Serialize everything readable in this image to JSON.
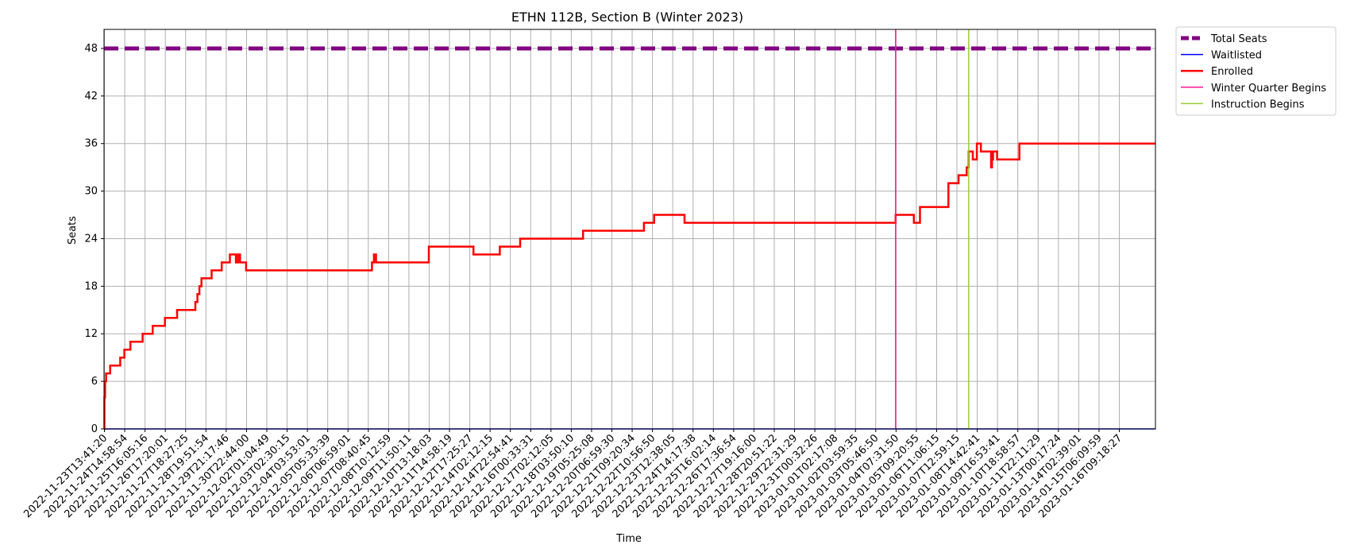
{
  "chart_data": {
    "type": "line",
    "title": "ETHN 112B, Section B (Winter 2023)",
    "xlabel": "Time",
    "ylabel": "Seats",
    "ylim": [
      0,
      50.4
    ],
    "y_ticks": [
      0,
      6,
      12,
      18,
      24,
      30,
      36,
      42,
      48
    ],
    "grid": true,
    "legend_position": "upper right, outside plot area",
    "x_tick_labels": [
      "2022-11-23T13:41:20",
      "2022-11-24T14:58:54",
      "2022-11-25T16:05:16",
      "2022-11-26T17:20:01",
      "2022-11-27T18:27:25",
      "2022-11-28T19:51:54",
      "2022-11-29T21:17:46",
      "2022-11-30T22:44:00",
      "2022-12-02T01:04:49",
      "2022-12-03T02:30:15",
      "2022-12-04T03:53:01",
      "2022-12-05T05:33:39",
      "2022-12-06T06:59:01",
      "2022-12-07T08:40:45",
      "2022-12-08T10:12:59",
      "2022-12-09T11:50:11",
      "2022-12-10T13:18:03",
      "2022-12-11T14:58:19",
      "2022-12-12T17:25:27",
      "2022-12-14T02:12:15",
      "2022-12-14T22:54:41",
      "2022-12-16T00:33:31",
      "2022-12-17T02:12:05",
      "2022-12-18T03:50:10",
      "2022-12-19T05:25:08",
      "2022-12-20T06:59:30",
      "2022-12-21T09:20:34",
      "2022-12-22T10:56:50",
      "2022-12-23T12:38:05",
      "2022-12-24T14:17:38",
      "2022-12-25T16:02:14",
      "2022-12-26T17:36:54",
      "2022-12-27T19:16:00",
      "2022-12-28T20:51:22",
      "2022-12-29T22:31:29",
      "2022-12-31T00:32:26",
      "2023-01-01T02:17:08",
      "2023-01-02T03:59:35",
      "2023-01-03T05:46:50",
      "2023-01-04T07:31:50",
      "2023-01-05T09:20:55",
      "2023-01-06T11:06:15",
      "2023-01-07T12:59:15",
      "2023-01-08T14:42:41",
      "2023-01-09T16:53:41",
      "2023-01-10T18:58:57",
      "2023-01-11T22:11:29",
      "2023-01-13T00:17:24",
      "2023-01-14T02:39:01",
      "2023-01-15T06:09:59",
      "2023-01-16T09:18:27"
    ],
    "series": [
      {
        "name": "Total Seats",
        "color": "#800080",
        "style": "dashed",
        "x": [
          0,
          51.8
        ],
        "values": [
          48,
          48
        ]
      },
      {
        "name": "Waitlisted",
        "color": "#0000ff",
        "style": "solid",
        "x": [
          0,
          51.8
        ],
        "values": [
          0,
          0
        ]
      },
      {
        "name": "Enrolled",
        "color": "#ff0000",
        "style": "step",
        "x": [
          0,
          0.02,
          0.05,
          0.1,
          0.3,
          0.8,
          1.0,
          1.3,
          1.9,
          2.4,
          3.0,
          3.6,
          4.5,
          4.6,
          4.7,
          4.8,
          5.3,
          5.8,
          6.2,
          6.5,
          6.6,
          6.7,
          7.0,
          13.2,
          13.3,
          13.4,
          16.0,
          18.2,
          19.5,
          20.5,
          23.6,
          26.6,
          27.1,
          28.6,
          39.0,
          39.9,
          40.2,
          41.6,
          42.1,
          42.5,
          42.6,
          42.8,
          43.0,
          43.2,
          43.5,
          43.7,
          43.75,
          43.8,
          44.0,
          45.1,
          45.4,
          45.6,
          46.1,
          46.2,
          46.3,
          46.7,
          46.8,
          47.0,
          51.8
        ],
        "values": [
          0,
          4,
          6,
          7,
          8,
          9,
          10,
          11,
          12,
          13,
          14,
          15,
          16,
          17,
          18,
          19,
          20,
          21,
          22,
          21,
          22,
          21,
          20,
          21,
          22,
          21,
          23,
          22,
          23,
          24,
          25,
          26,
          27,
          26,
          27,
          26,
          28,
          31,
          32,
          33,
          35,
          34,
          36,
          35,
          35,
          33,
          34,
          35,
          34,
          36,
          36,
          36,
          36,
          36,
          36,
          36,
          36,
          36,
          36
        ]
      },
      {
        "name": "Winter Quarter Begins",
        "color": "#ff1493",
        "style": "vline",
        "x": [
          39.0
        ]
      },
      {
        "name": "Instruction Begins",
        "color": "#9acd32",
        "style": "vline",
        "x": [
          42.6
        ]
      }
    ]
  }
}
